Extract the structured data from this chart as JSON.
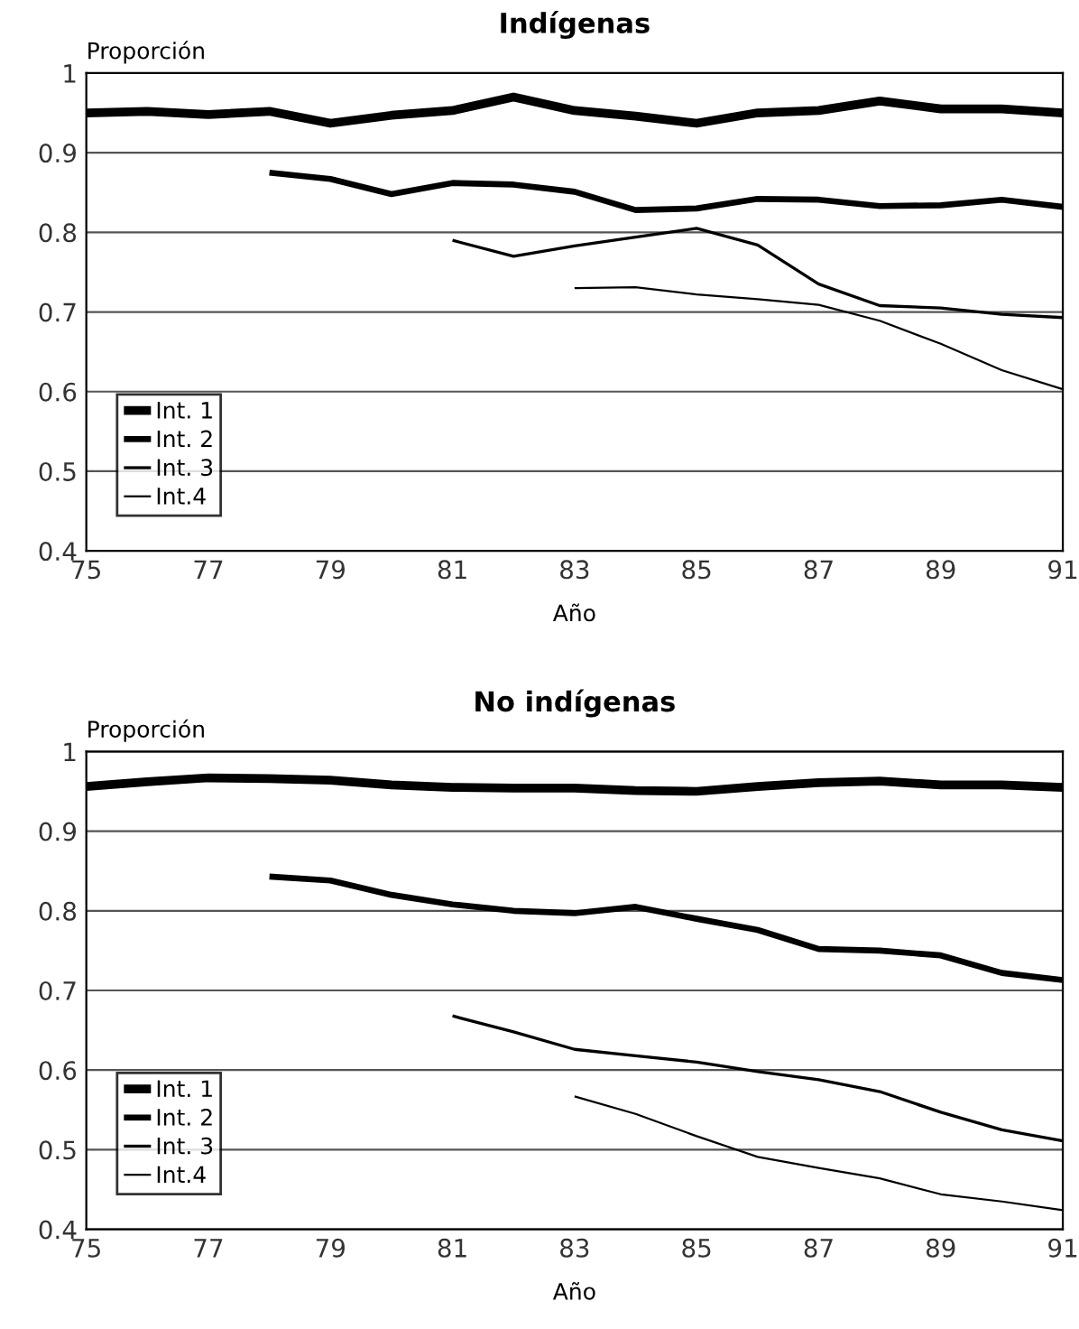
{
  "chart_data": [
    {
      "type": "line",
      "title": "Indígenas",
      "xlabel": "Año",
      "ylabel": "Proporción",
      "x": [
        75,
        76,
        77,
        78,
        79,
        80,
        81,
        82,
        83,
        84,
        85,
        86,
        87,
        88,
        89,
        90,
        91
      ],
      "xlim": [
        75,
        91
      ],
      "xticks": [
        75,
        77,
        79,
        81,
        83,
        85,
        87,
        89,
        91
      ],
      "ylim": [
        0.4,
        1
      ],
      "yticks": [
        0.4,
        0.5,
        0.6,
        0.7,
        0.8,
        0.9,
        1
      ],
      "grid": "y",
      "legend": "bottom left",
      "line_style": "solid",
      "marker": "none",
      "series": [
        {
          "name": "Int. 1",
          "color": "#000000",
          "values": [
            0.95,
            0.952,
            0.948,
            0.952,
            0.937,
            0.947,
            0.953,
            0.97,
            0.953,
            0.946,
            0.937,
            0.95,
            0.953,
            0.965,
            0.955,
            0.955,
            0.95
          ]
        },
        {
          "name": "Int. 2",
          "color": "#000000",
          "values": [
            null,
            null,
            null,
            0.875,
            0.867,
            0.848,
            0.862,
            0.86,
            0.851,
            0.828,
            0.83,
            0.842,
            0.841,
            0.833,
            0.834,
            0.841,
            0.832
          ]
        },
        {
          "name": "Int. 3",
          "color": "#000000",
          "values": [
            null,
            null,
            null,
            null,
            null,
            null,
            0.79,
            0.77,
            0.783,
            0.794,
            0.805,
            0.784,
            0.735,
            0.708,
            0.705,
            0.697,
            0.693
          ]
        },
        {
          "name": "Int.4",
          "color": "#000000",
          "values": [
            null,
            null,
            null,
            null,
            null,
            null,
            null,
            null,
            0.73,
            0.731,
            0.722,
            0.716,
            0.709,
            0.689,
            0.66,
            0.627,
            0.603
          ]
        }
      ]
    },
    {
      "type": "line",
      "title": "No indígenas",
      "xlabel": "Año",
      "ylabel": "Proporción",
      "x": [
        75,
        76,
        77,
        78,
        79,
        80,
        81,
        82,
        83,
        84,
        85,
        86,
        87,
        88,
        89,
        90,
        91
      ],
      "xlim": [
        75,
        91
      ],
      "xticks": [
        75,
        77,
        79,
        81,
        83,
        85,
        87,
        89,
        91
      ],
      "ylim": [
        0.4,
        1
      ],
      "yticks": [
        0.4,
        0.5,
        0.6,
        0.7,
        0.8,
        0.9,
        1
      ],
      "grid": "y",
      "legend": "bottom left",
      "line_style": "solid",
      "marker": "none",
      "series": [
        {
          "name": "Int. 1",
          "color": "#000000",
          "values": [
            0.956,
            0.962,
            0.967,
            0.966,
            0.964,
            0.958,
            0.955,
            0.954,
            0.954,
            0.951,
            0.95,
            0.956,
            0.961,
            0.963,
            0.958,
            0.958,
            0.955
          ]
        },
        {
          "name": "Int. 2",
          "color": "#000000",
          "values": [
            null,
            null,
            null,
            0.843,
            0.838,
            0.82,
            0.808,
            0.8,
            0.797,
            0.805,
            0.79,
            0.776,
            0.752,
            0.75,
            0.744,
            0.722,
            0.713
          ]
        },
        {
          "name": "Int. 3",
          "color": "#000000",
          "values": [
            null,
            null,
            null,
            null,
            null,
            null,
            0.668,
            0.648,
            0.626,
            0.618,
            0.61,
            0.598,
            0.588,
            0.573,
            0.547,
            0.525,
            0.511
          ]
        },
        {
          "name": "Int.4",
          "color": "#000000",
          "values": [
            null,
            null,
            null,
            null,
            null,
            null,
            null,
            null,
            0.567,
            0.545,
            0.517,
            0.491,
            0.477,
            0.464,
            0.444,
            0.435,
            0.424
          ]
        }
      ]
    }
  ]
}
